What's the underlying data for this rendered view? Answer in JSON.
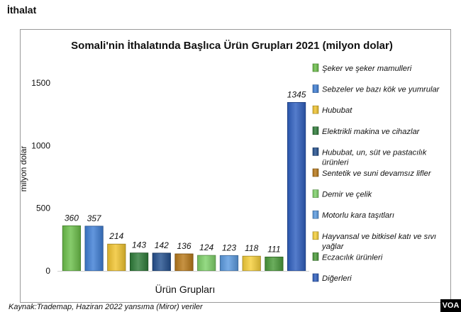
{
  "page": {
    "heading": "İthalat",
    "source": "Kaynak:Trademap, Haziran 2022  yansıma (Miror) veriler",
    "logo_text": "VOA"
  },
  "chart_data": {
    "type": "bar",
    "title": "Somali'nin İthalatında Başlıca Ürün Grupları 2021 (milyon dolar)",
    "xlabel": "Ürün Grupları",
    "ylabel": "milyon dolar",
    "ylim": [
      0,
      1500
    ],
    "yticks": [
      0,
      500,
      1000,
      1500
    ],
    "grid": false,
    "legend_position": "right",
    "categories": [
      "Şeker ve şeker mamulleri",
      "Sebzeler ve bazı kök ve yumrular",
      "Hububat",
      "Elektrikli makina ve cihazlar",
      "Hububat, un, süt ve pastacılık ürünleri",
      "Sentetik ve suni devamsız lifler",
      "Demir ve çelik",
      "Motorlu kara taşıtları",
      "Hayvansal ve bitkisel katı ve sıvı yağlar",
      "Eczacılık ürünleri",
      "Diğerleri"
    ],
    "legend_lines": [
      [
        "Şeker ve şeker mamulleri"
      ],
      [
        "Sebzeler ve bazı kök ve yumrular"
      ],
      [
        "Hububat"
      ],
      [
        "Elektrikli makina ve cihazlar"
      ],
      [
        "Hububat, un, süt ve pastacılık",
        "ürünleri"
      ],
      [
        "Sentetik ve suni devamsız lifler"
      ],
      [
        "Demir ve çelik"
      ],
      [
        "Motorlu kara taşıtları"
      ],
      [
        "Hayvansal ve bitkisel katı ve sıvı",
        "yağlar"
      ],
      [
        "Eczacılık ürünleri"
      ],
      [
        "Diğerleri"
      ]
    ],
    "values": [
      360,
      357,
      214,
      143,
      142,
      136,
      124,
      123,
      118,
      111,
      1345
    ],
    "colors": [
      "#6cc04a",
      "#3f7fd6",
      "#f2c530",
      "#2f7d3a",
      "#24508f",
      "#b97a1a",
      "#7fd26a",
      "#5b9be0",
      "#f6cf3a",
      "#4a9b3a",
      "#2f5fc0"
    ]
  }
}
